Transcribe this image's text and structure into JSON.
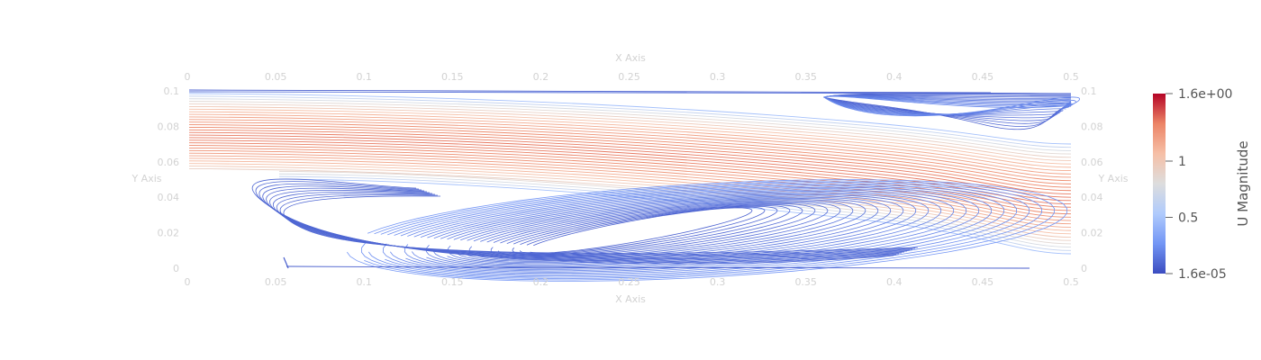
{
  "chart_data": {
    "type": "streamline-plot",
    "x_axis_title": "X Axis",
    "y_axis_title": "Y Axis",
    "x_ticks": [
      "0",
      "0.05",
      "0.1",
      "0.15",
      "0.2",
      "0.25",
      "0.3",
      "0.35",
      "0.4",
      "0.45",
      "0.5"
    ],
    "x_tick_values": [
      0,
      0.05,
      0.1,
      0.15,
      0.2,
      0.25,
      0.3,
      0.35,
      0.4,
      0.45,
      0.5
    ],
    "y_ticks": [
      "0",
      "0.02",
      "0.04",
      "0.06",
      "0.08",
      "0.1"
    ],
    "y_tick_values": [
      0,
      0.02,
      0.04,
      0.06,
      0.08,
      0.1
    ],
    "xlim": [
      0,
      0.5
    ],
    "ylim": [
      0,
      0.1
    ],
    "colorbar": {
      "title": "U Magnitude",
      "min": 1.6e-05,
      "max": 1.6,
      "tick_labels": [
        "1.6e+00",
        "1",
        "0.5",
        "1.6e-05"
      ],
      "tick_values": [
        1.6,
        1,
        0.5,
        1.6e-05
      ],
      "colormap": "coolwarm",
      "colors": [
        "#3b4cc0",
        "#7396f5",
        "#b0cbfc",
        "#dddddd",
        "#f6bfa6",
        "#ec8466",
        "#b40426"
      ]
    }
  }
}
